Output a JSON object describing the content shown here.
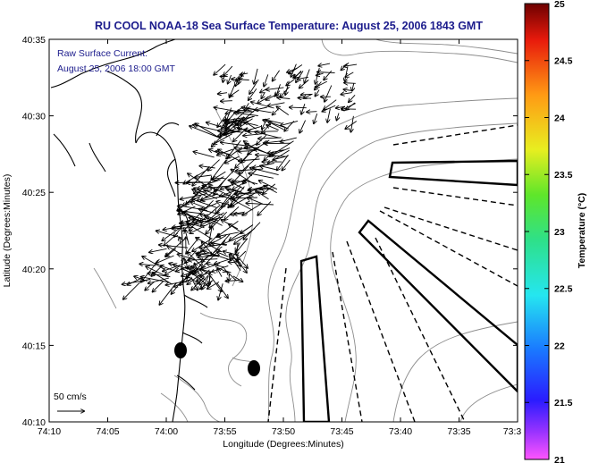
{
  "title": "RU COOL  NOAA-18  Sea Surface Temperature:  August 25, 2006 1843 GMT",
  "annotation": {
    "line1": "Raw Surface Current:",
    "line2": "August 25, 2006 18:00 GMT"
  },
  "scale_label": "50 cm/s",
  "xlabel": "Longitude (Degrees:Minutes)",
  "ylabel": "Latitude (Degrees:Minutes)",
  "colorbar": {
    "label": "Temperature (°C)",
    "ticks": [
      "25",
      "24.5",
      "24",
      "23.5",
      "23",
      "22.5",
      "22",
      "21.5",
      "21"
    ]
  },
  "x_ticks": [
    "74:10",
    "74:05",
    "74:00",
    "73:55",
    "73:50",
    "73:45",
    "73:40",
    "73:35",
    "73:3"
  ],
  "y_ticks": [
    "40:35",
    "40:30",
    "40:25",
    "40:20",
    "40:15",
    "40:10"
  ],
  "colors": {
    "title": "#1c1c8c",
    "annotation": "#1c1c8c",
    "coast": "#000000",
    "bathymetry": "#8c8c8c",
    "frame": "#000000"
  },
  "chart_data": {
    "type": "map",
    "x_axis": "Longitude (Degrees:Minutes)",
    "y_axis": "Latitude (Degrees:Minutes)",
    "xlim": [
      "74:10",
      "73:30"
    ],
    "ylim": [
      "40:10",
      "40:35"
    ],
    "color_scale_range": [
      21,
      25
    ],
    "color_scale_units": "°C",
    "vector_scale": "50 cm/s"
  }
}
